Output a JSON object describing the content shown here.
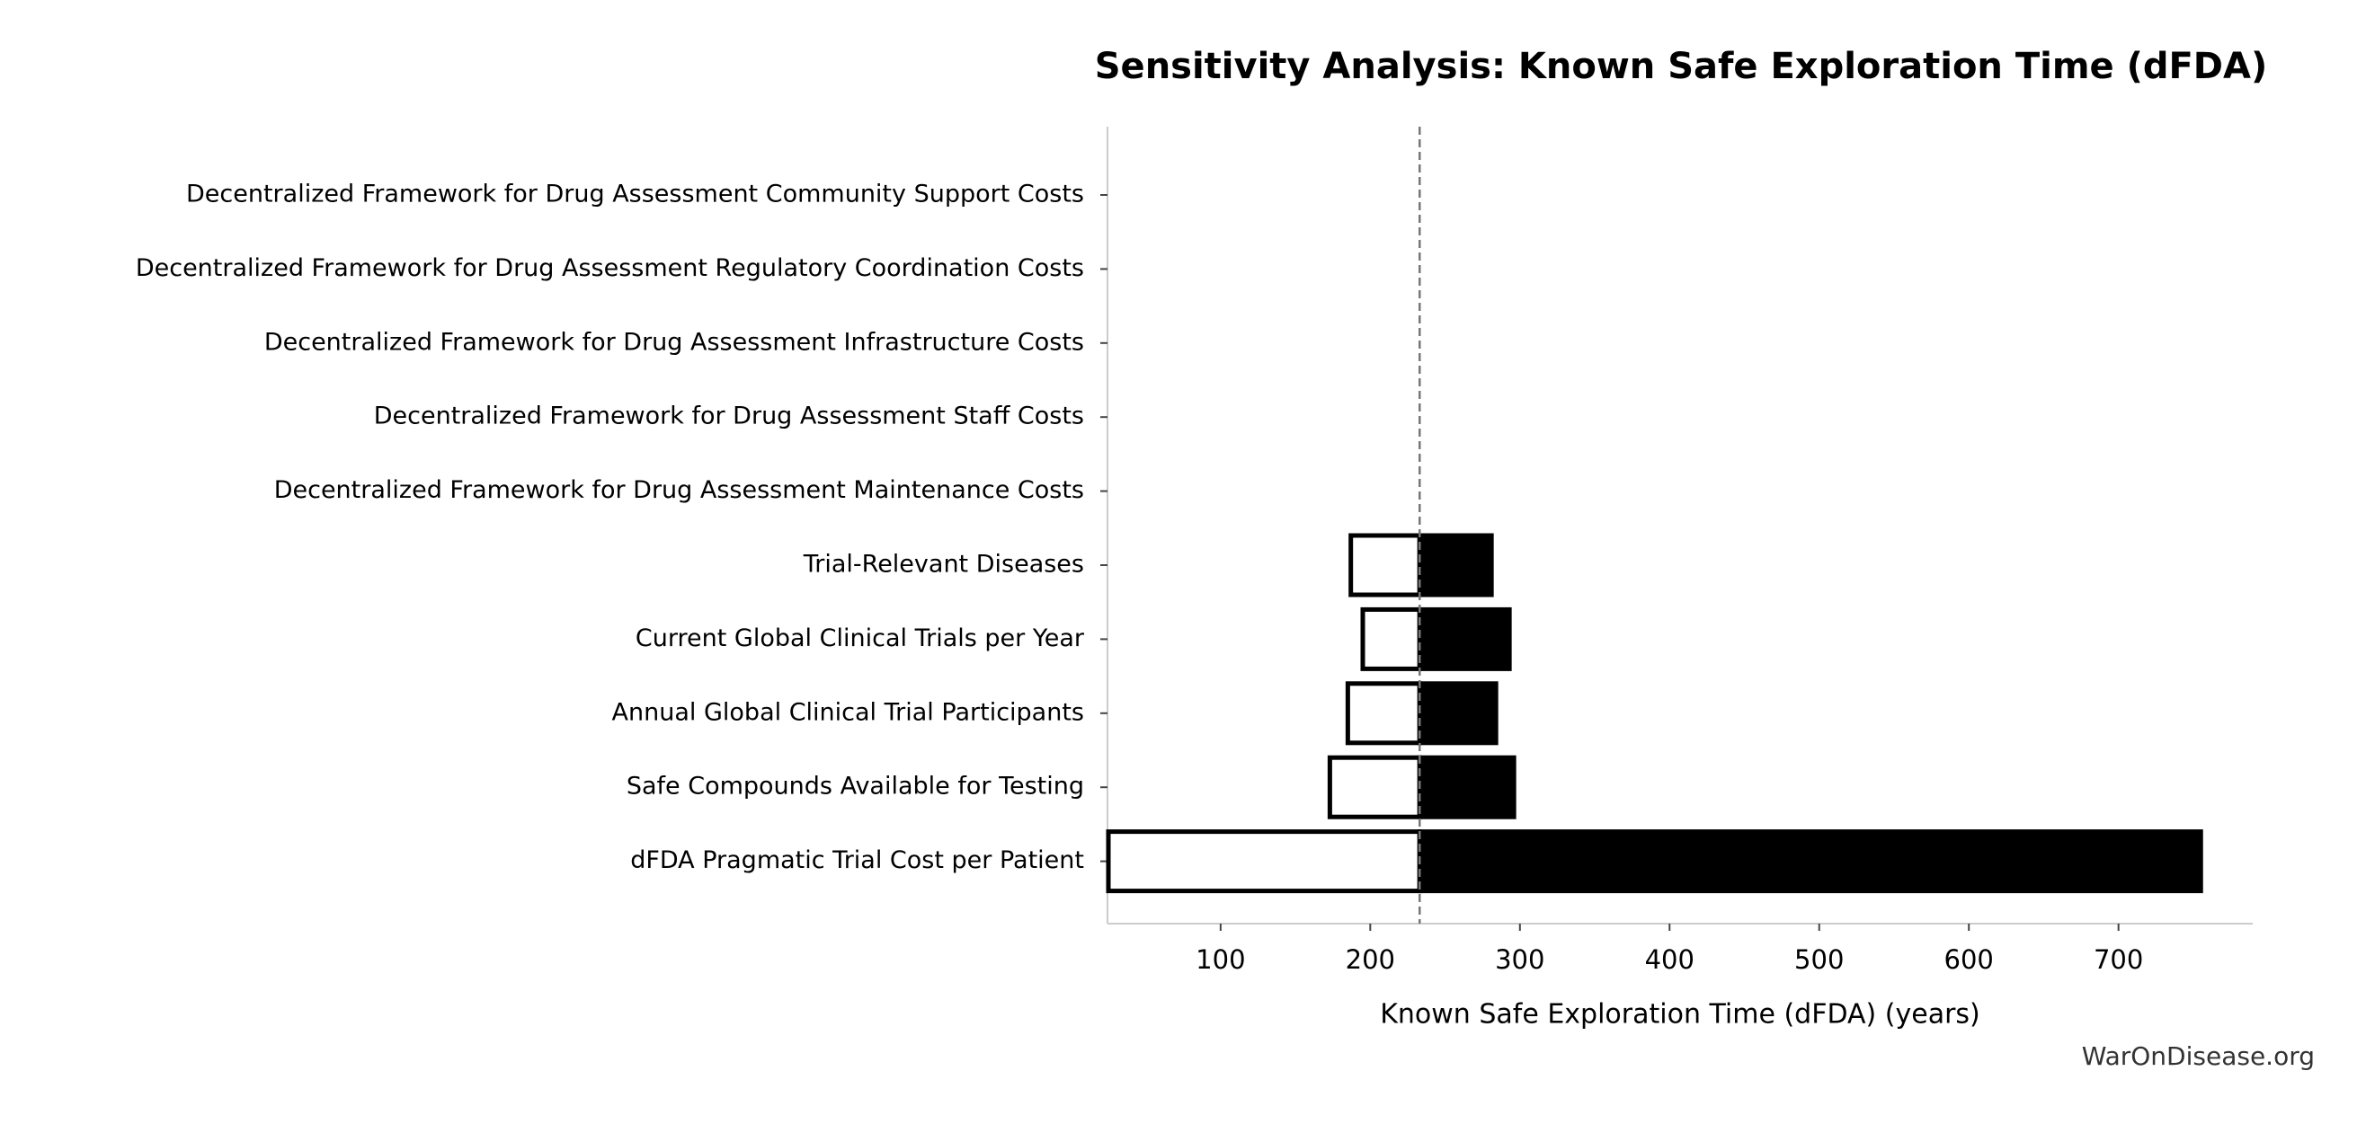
{
  "chart_data": {
    "type": "tornado",
    "title": "Sensitivity Analysis: Known Safe Exploration Time (dFDA)",
    "x_label": "Known Safe Exploration Time (dFDA) (years)",
    "footer": "WarOnDisease.org",
    "baseline": 233,
    "categories": [
      "Decentralized Framework for Drug Assessment Community Support Costs",
      "Decentralized Framework for Drug Assessment Regulatory Coordination Costs",
      "Decentralized Framework for Drug Assessment Infrastructure Costs",
      "Decentralized Framework for Drug Assessment Staff Costs",
      "Decentralized Framework for Drug Assessment Maintenance Costs",
      "Trial-Relevant Diseases",
      "Current Global Clinical Trials per Year",
      "Annual Global Clinical Trial Participants",
      "Safe Compounds Available for Testing",
      "dFDA Pragmatic Trial Cost per Patient"
    ],
    "series": [
      {
        "color": "#ffffff",
        "values": [
          233,
          233,
          233,
          233,
          233,
          187,
          195,
          185,
          173,
          25
        ]
      },
      {
        "color": "#000000",
        "values": [
          233,
          233,
          233,
          233,
          233,
          281,
          293,
          284,
          296,
          755
        ]
      }
    ],
    "xlim": [
      24.4,
      789.7
    ],
    "xticks": [
      100,
      200,
      300,
      400,
      500,
      600,
      700
    ]
  }
}
